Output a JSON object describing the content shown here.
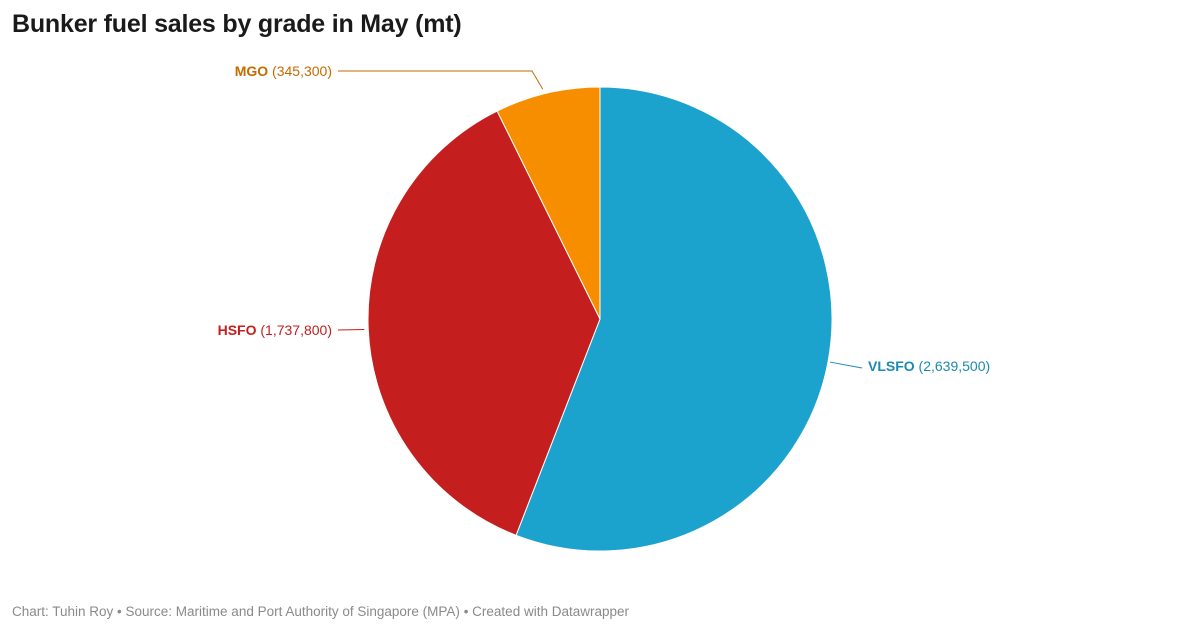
{
  "title": "Bunker fuel sales by grade in May (mt)",
  "footer": {
    "credit": "Chart: Tuhin Roy",
    "sep1": " • ",
    "source": "Source: Maritime and Port Authority of Singapore (MPA)",
    "sep2": " • ",
    "tool": "Created with Datawrapper"
  },
  "chart_data": {
    "type": "pie",
    "title": "Bunker fuel sales by grade in May (mt)",
    "slices": [
      {
        "name": "VLSFO",
        "value": 2639500,
        "display": "(2,639,500)",
        "color": "#1ba3ce",
        "label_color": "#1b8ab0"
      },
      {
        "name": "HSFO",
        "value": 1737800,
        "display": "(1,737,800)",
        "color": "#c41e1e",
        "label_color": "#c41e1e"
      },
      {
        "name": "MGO",
        "value": 345300,
        "display": "(345,300)",
        "color": "#f68e00",
        "label_color": "#c66a00"
      }
    ]
  }
}
